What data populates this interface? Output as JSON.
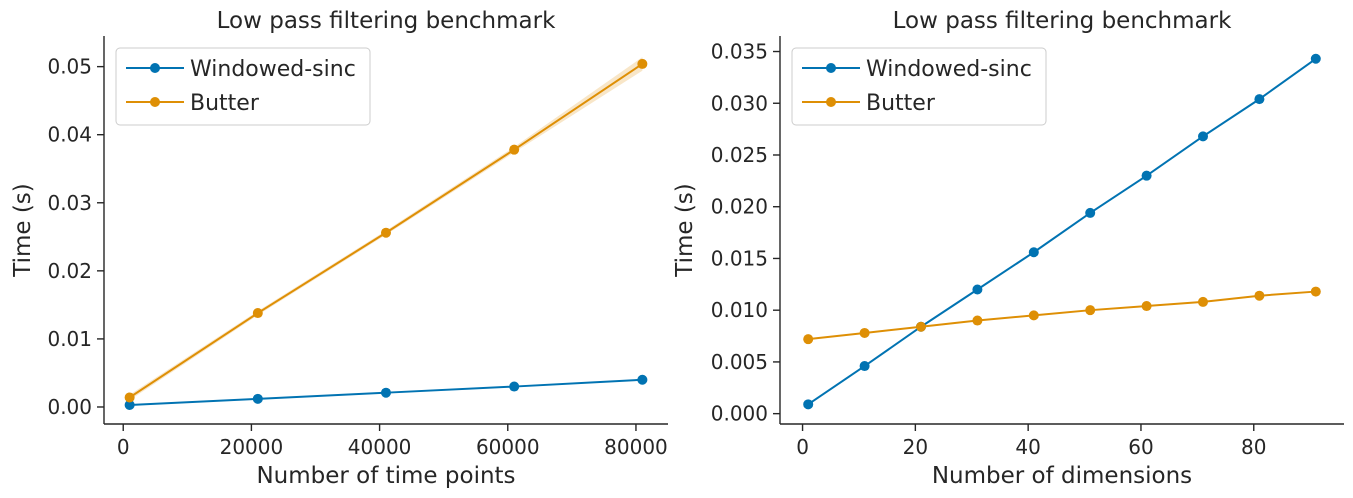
{
  "chart_data": [
    {
      "type": "line",
      "title": "Low pass filtering benchmark",
      "xlabel": "Number of time points",
      "ylabel": "Time (s)",
      "xlim": [
        -3000,
        85000
      ],
      "ylim": [
        -0.0025,
        0.0545
      ],
      "xticks": [
        0,
        20000,
        40000,
        60000,
        80000
      ],
      "xtick_labels": [
        "0",
        "20000",
        "40000",
        "60000",
        "80000"
      ],
      "yticks": [
        0.0,
        0.01,
        0.02,
        0.03,
        0.04,
        0.05
      ],
      "ytick_labels": [
        "0.00",
        "0.01",
        "0.02",
        "0.03",
        "0.04",
        "0.05"
      ],
      "legend_position": "top-left",
      "grid": false,
      "x": [
        1000,
        21000,
        41000,
        61000,
        81000
      ],
      "series": [
        {
          "name": "Windowed-sinc",
          "color": "#0173b2",
          "values": [
            0.0003,
            0.0012,
            0.0021,
            0.003,
            0.004
          ]
        },
        {
          "name": "Butter",
          "color": "#de8f05",
          "values": [
            0.0014,
            0.0138,
            0.0256,
            0.0378,
            0.0504
          ],
          "band": [
            0.0004,
            0.0003,
            0.0003,
            0.0004,
            0.001
          ]
        }
      ]
    },
    {
      "type": "line",
      "title": "Low pass filtering benchmark",
      "xlabel": "Number of dimensions",
      "ylabel": "Time (s)",
      "xlim": [
        -4,
        96
      ],
      "ylim": [
        -0.001,
        0.0365
      ],
      "xticks": [
        0,
        20,
        40,
        60,
        80
      ],
      "xtick_labels": [
        "0",
        "20",
        "40",
        "60",
        "80"
      ],
      "yticks": [
        0.0,
        0.005,
        0.01,
        0.015,
        0.02,
        0.025,
        0.03,
        0.035
      ],
      "ytick_labels": [
        "0.000",
        "0.005",
        "0.010",
        "0.015",
        "0.020",
        "0.025",
        "0.030",
        "0.035"
      ],
      "legend_position": "top-left",
      "grid": false,
      "x": [
        1,
        11,
        21,
        31,
        41,
        51,
        61,
        71,
        81,
        91
      ],
      "series": [
        {
          "name": "Windowed-sinc",
          "color": "#0173b2",
          "values": [
            0.0009,
            0.0046,
            0.0084,
            0.012,
            0.0156,
            0.0194,
            0.023,
            0.0268,
            0.0304,
            0.0343
          ]
        },
        {
          "name": "Butter",
          "color": "#de8f05",
          "values": [
            0.0072,
            0.0078,
            0.0084,
            0.009,
            0.0095,
            0.01,
            0.0104,
            0.0108,
            0.0114,
            0.0118
          ]
        }
      ]
    }
  ]
}
